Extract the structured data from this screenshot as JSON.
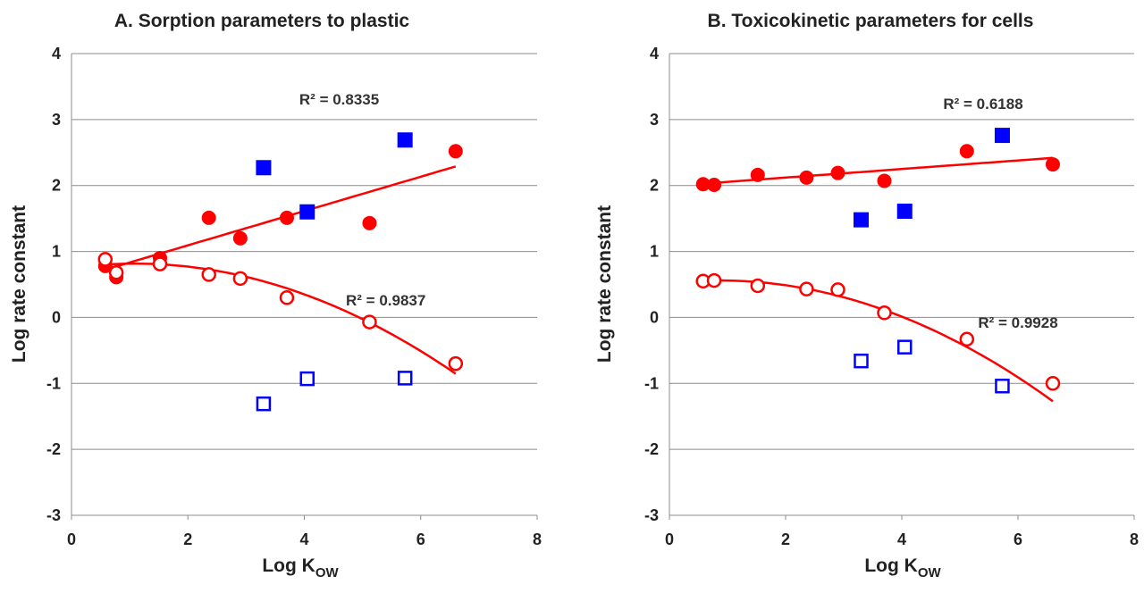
{
  "chart_data": [
    {
      "type": "scatter",
      "title": "A. Sorption parameters to plastic",
      "xlabel_main": "Log K",
      "xlabel_sub": "OW",
      "ylabel": "Log rate constant",
      "xlim": [
        0,
        8
      ],
      "ylim": [
        -3,
        4
      ],
      "xticks": [
        "0",
        "2",
        "4",
        "6",
        "8"
      ],
      "yticks": [
        "-3",
        "-2",
        "-1",
        "0",
        "1",
        "2",
        "3",
        "4"
      ],
      "grid": true,
      "series": [
        {
          "marker": "circle",
          "filled": true,
          "color": "#ff0000",
          "x": [
            0.58,
            0.77,
            1.52,
            2.36,
            2.9,
            3.7,
            5.12,
            6.6
          ],
          "y": [
            0.78,
            0.61,
            0.9,
            1.51,
            1.2,
            1.51,
            1.43,
            2.52
          ]
        },
        {
          "marker": "circle",
          "filled": false,
          "color": "#ff0000",
          "x": [
            0.58,
            0.77,
            1.52,
            2.36,
            2.9,
            3.7,
            5.12,
            6.6
          ],
          "y": [
            0.88,
            0.68,
            0.81,
            0.65,
            0.59,
            0.3,
            -0.07,
            -0.7
          ]
        },
        {
          "marker": "square",
          "filled": true,
          "color": "#0000ff",
          "x": [
            3.3,
            4.05,
            5.73
          ],
          "y": [
            2.27,
            1.6,
            2.69
          ]
        },
        {
          "marker": "square",
          "filled": false,
          "color": "#0000ff",
          "x": [
            3.3,
            4.05,
            5.73
          ],
          "y": [
            -1.31,
            -0.93,
            -0.92
          ]
        }
      ],
      "trendlines": [
        {
          "kind": "linear",
          "color": "#ff0000",
          "coef": [
            0.573,
            0.26
          ],
          "xrange": [
            0.58,
            6.6
          ]
        },
        {
          "kind": "quadratic",
          "color": "#ff0000",
          "coef": [
            0.75,
            0.12,
            -0.055
          ],
          "xrange": [
            0.58,
            6.6
          ]
        }
      ],
      "annotations": [
        {
          "text": "R² = 0.8335",
          "x": 4.6,
          "y": 3.23
        },
        {
          "text": "R² = 0.9837",
          "x": 5.4,
          "y": 0.18
        }
      ]
    },
    {
      "type": "scatter",
      "title": "B. Toxicokinetic parameters for cells",
      "xlabel_main": "Log K",
      "xlabel_sub": "OW",
      "ylabel": "Log rate constant",
      "xlim": [
        0,
        8
      ],
      "ylim": [
        -3,
        4
      ],
      "xticks": [
        "0",
        "2",
        "4",
        "6",
        "8"
      ],
      "yticks": [
        "-3",
        "-2",
        "-1",
        "0",
        "1",
        "2",
        "3",
        "4"
      ],
      "grid": true,
      "series": [
        {
          "marker": "circle",
          "filled": true,
          "color": "#ff0000",
          "x": [
            0.58,
            0.77,
            1.52,
            2.36,
            2.9,
            3.7,
            5.12,
            6.6
          ],
          "y": [
            2.02,
            2.01,
            2.16,
            2.12,
            2.19,
            2.07,
            2.52,
            2.32
          ]
        },
        {
          "marker": "circle",
          "filled": false,
          "color": "#ff0000",
          "x": [
            0.58,
            0.77,
            1.52,
            2.36,
            2.9,
            3.7,
            5.12,
            6.6
          ],
          "y": [
            0.55,
            0.56,
            0.48,
            0.43,
            0.42,
            0.07,
            -0.33,
            -1.0
          ]
        },
        {
          "marker": "square",
          "filled": true,
          "color": "#0000ff",
          "x": [
            3.3,
            4.05,
            5.73
          ],
          "y": [
            1.48,
            1.61,
            2.76
          ]
        },
        {
          "marker": "square",
          "filled": false,
          "color": "#0000ff",
          "x": [
            3.3,
            4.05,
            5.73
          ],
          "y": [
            -0.66,
            -0.45,
            -1.04
          ]
        }
      ],
      "trendlines": [
        {
          "kind": "linear",
          "color": "#ff0000",
          "coef": [
            1.99,
            0.065
          ],
          "xrange": [
            0.58,
            6.6
          ]
        },
        {
          "kind": "quadratic",
          "color": "#ff0000",
          "coef": [
            0.52,
            0.095,
            -0.0555
          ],
          "xrange": [
            0.58,
            6.6
          ]
        }
      ],
      "annotations": [
        {
          "text": "R² = 0.6188",
          "x": 5.4,
          "y": 3.16
        },
        {
          "text": "R² = 0.9928",
          "x": 6.0,
          "y": -0.16
        }
      ]
    }
  ]
}
